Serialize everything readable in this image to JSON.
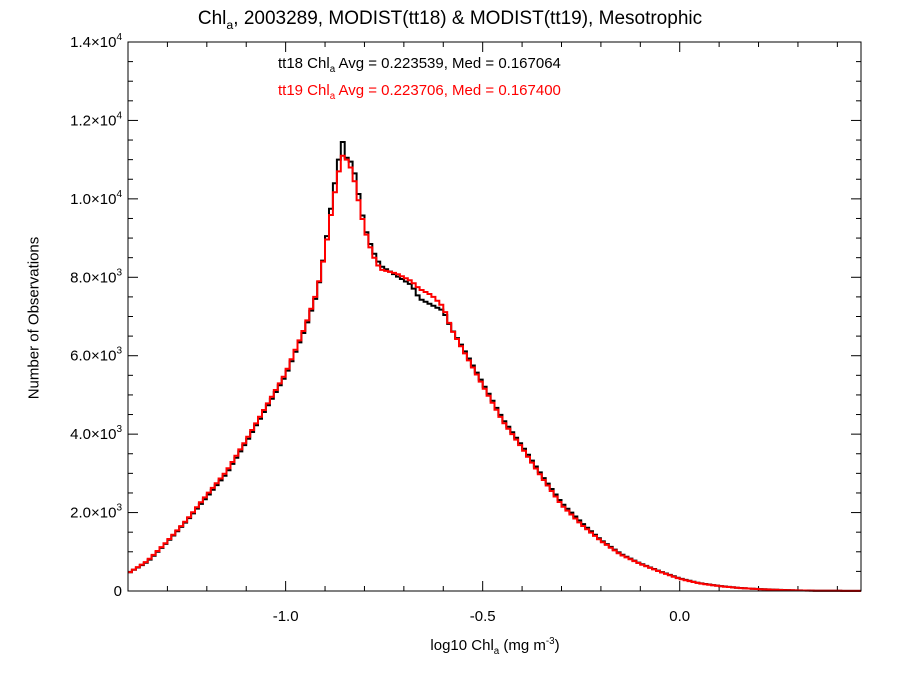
{
  "title": {
    "pre": "Chl",
    "sub": "a",
    "post": ", 2003289, MODIST(tt18) & MODIST(tt19), Mesotrophic"
  },
  "annotations": [
    {
      "pre": "tt18 Chl",
      "sub": "a",
      "post": " Avg = 0.223539, Med = 0.167064",
      "color": "#000000"
    },
    {
      "pre": "tt19 Chl",
      "sub": "a",
      "post": " Avg = 0.223706, Med = 0.167400",
      "color": "#ff0000"
    }
  ],
  "xlabel": {
    "pre": "log10 Chl",
    "sub": "a",
    "mid": " (mg m",
    "sup": "-3",
    "post": ")"
  },
  "ylabel": "Number of Observations",
  "chart_data": {
    "type": "line",
    "step": true,
    "xlim": [
      -1.4,
      0.46
    ],
    "ylim": [
      0,
      14000
    ],
    "xticks": [
      {
        "value": -1.0,
        "label": "-1.0"
      },
      {
        "value": -0.5,
        "label": "-0.5"
      },
      {
        "value": 0.0,
        "label": "0.0"
      }
    ],
    "yticks": [
      {
        "value": 0,
        "label": "0",
        "exp": ""
      },
      {
        "value": 2000,
        "label": "2.0×10",
        "exp": "3"
      },
      {
        "value": 4000,
        "label": "4.0×10",
        "exp": "3"
      },
      {
        "value": 6000,
        "label": "6.0×10",
        "exp": "3"
      },
      {
        "value": 8000,
        "label": "8.0×10",
        "exp": "3"
      },
      {
        "value": 10000,
        "label": "1.0×10",
        "exp": "4"
      },
      {
        "value": 12000,
        "label": "1.2×10",
        "exp": "4"
      },
      {
        "value": 14000,
        "label": "1.4×10",
        "exp": "4"
      }
    ],
    "series": [
      {
        "name": "tt18",
        "color": "#000000",
        "points": [
          [
            -1.4,
            450
          ],
          [
            -1.35,
            750
          ],
          [
            -1.3,
            1250
          ],
          [
            -1.25,
            1800
          ],
          [
            -1.2,
            2400
          ],
          [
            -1.15,
            3000
          ],
          [
            -1.1,
            3800
          ],
          [
            -1.05,
            4650
          ],
          [
            -1.0,
            5500
          ],
          [
            -0.95,
            6700
          ],
          [
            -0.92,
            7600
          ],
          [
            -0.9,
            8700
          ],
          [
            -0.88,
            10100
          ],
          [
            -0.865,
            11000
          ],
          [
            -0.855,
            11450
          ],
          [
            -0.845,
            11050
          ],
          [
            -0.83,
            10900
          ],
          [
            -0.82,
            10400
          ],
          [
            -0.8,
            9300
          ],
          [
            -0.78,
            8700
          ],
          [
            -0.76,
            8300
          ],
          [
            -0.72,
            8050
          ],
          [
            -0.68,
            7800
          ],
          [
            -0.66,
            7450
          ],
          [
            -0.63,
            7300
          ],
          [
            -0.6,
            7150
          ],
          [
            -0.58,
            6700
          ],
          [
            -0.55,
            6200
          ],
          [
            -0.5,
            5300
          ],
          [
            -0.45,
            4400
          ],
          [
            -0.4,
            3700
          ],
          [
            -0.35,
            2950
          ],
          [
            -0.3,
            2250
          ],
          [
            -0.25,
            1750
          ],
          [
            -0.2,
            1300
          ],
          [
            -0.15,
            950
          ],
          [
            -0.1,
            700
          ],
          [
            -0.05,
            500
          ],
          [
            0.0,
            320
          ],
          [
            0.05,
            200
          ],
          [
            0.1,
            130
          ],
          [
            0.15,
            80
          ],
          [
            0.2,
            50
          ],
          [
            0.25,
            30
          ],
          [
            0.3,
            15
          ],
          [
            0.35,
            8
          ],
          [
            0.4,
            4
          ],
          [
            0.46,
            2
          ]
        ]
      },
      {
        "name": "tt19",
        "color": "#ff0000",
        "points": [
          [
            -1.4,
            450
          ],
          [
            -1.35,
            770
          ],
          [
            -1.3,
            1270
          ],
          [
            -1.25,
            1820
          ],
          [
            -1.2,
            2450
          ],
          [
            -1.15,
            3050
          ],
          [
            -1.1,
            3850
          ],
          [
            -1.05,
            4700
          ],
          [
            -1.0,
            5550
          ],
          [
            -0.95,
            6750
          ],
          [
            -0.92,
            7650
          ],
          [
            -0.9,
            8650
          ],
          [
            -0.88,
            9900
          ],
          [
            -0.865,
            10700
          ],
          [
            -0.855,
            11100
          ],
          [
            -0.845,
            11000
          ],
          [
            -0.83,
            10700
          ],
          [
            -0.82,
            10200
          ],
          [
            -0.8,
            9250
          ],
          [
            -0.78,
            8600
          ],
          [
            -0.76,
            8200
          ],
          [
            -0.72,
            8100
          ],
          [
            -0.68,
            7900
          ],
          [
            -0.66,
            7700
          ],
          [
            -0.63,
            7550
          ],
          [
            -0.6,
            7250
          ],
          [
            -0.58,
            6700
          ],
          [
            -0.55,
            6150
          ],
          [
            -0.5,
            5250
          ],
          [
            -0.45,
            4350
          ],
          [
            -0.4,
            3650
          ],
          [
            -0.35,
            2900
          ],
          [
            -0.3,
            2200
          ],
          [
            -0.25,
            1700
          ],
          [
            -0.2,
            1280
          ],
          [
            -0.15,
            930
          ],
          [
            -0.1,
            690
          ],
          [
            -0.05,
            490
          ],
          [
            0.0,
            310
          ],
          [
            0.05,
            195
          ],
          [
            0.1,
            125
          ],
          [
            0.15,
            78
          ],
          [
            0.2,
            48
          ],
          [
            0.25,
            28
          ],
          [
            0.3,
            14
          ],
          [
            0.35,
            7
          ],
          [
            0.4,
            4
          ],
          [
            0.46,
            2
          ]
        ]
      }
    ]
  }
}
